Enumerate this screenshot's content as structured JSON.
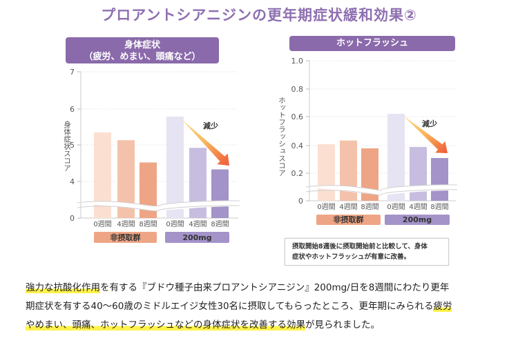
{
  "title": "プロアントシアニジンの更年期症状緩和効果②",
  "colors": {
    "accent": "#8a6aaa",
    "control_group": "#eea585",
    "treatment_group": "#a393c8",
    "highlight": "#fff24a"
  },
  "chart_data": [
    {
      "type": "bar",
      "title_line1": "身体症状",
      "title_line2": "（疲労、めまい、頭痛など）",
      "ylabel": "身体症状スコア",
      "ylim": [
        0,
        7
      ],
      "axis_break": "between 0 and 4",
      "yticks": [
        "0",
        "4",
        "5",
        "6",
        "7"
      ],
      "categories": [
        "0週間",
        "4週間",
        "8週間",
        "0週間",
        "4週間",
        "8週間"
      ],
      "groups": [
        {
          "name": "非摂取群",
          "values": [
            5.35,
            5.13,
            4.52
          ]
        },
        {
          "name": "200mg",
          "values": [
            5.79,
            4.92,
            4.33
          ]
        }
      ],
      "annotation": "減少",
      "grid": true
    },
    {
      "type": "bar",
      "title_line1": "ホットフラッシュ",
      "ylabel": "ホットフラッシュスコア",
      "ylim": [
        0,
        1.0
      ],
      "axis_break": "between 0 and 0.2",
      "yticks": [
        "0",
        "0.2",
        "0.4",
        "0.6",
        "0.8",
        "1.0"
      ],
      "categories": [
        "0週間",
        "4週間",
        "8週間",
        "0週間",
        "4週間",
        "8週間"
      ],
      "groups": [
        {
          "name": "非摂取群",
          "values": [
            0.41,
            0.435,
            0.38
          ]
        },
        {
          "name": "200mg",
          "values": [
            0.62,
            0.39,
            0.31
          ]
        }
      ],
      "annotation": "減少",
      "grid": true
    }
  ],
  "note": {
    "line1": "摂取開始8週後に摂取開始前と比較して、身体",
    "line2": "症状やホットフラッシュが有意に改善。"
  },
  "description": {
    "l1_hl": "強力な抗酸化作用",
    "l1_rest": "を有する『ブドウ種子由来プロアントシアニジン』200mg/日を8週間にわたり更年",
    "l2_rest": "期症状を有する40～60歳のミドルエイジ女性30名に摂取してもらったところ、更年期にみられる",
    "l2_hl": "疲労",
    "l3_hl": "やめまい、頭痛、ホットフラッシュなどの身体症状を改善する効果",
    "l3_rest": "が見られました。"
  }
}
